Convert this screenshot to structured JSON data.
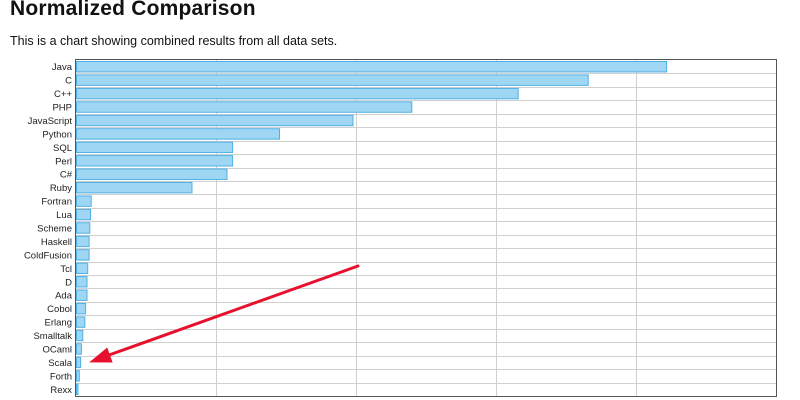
{
  "header": {
    "title": "Normalized Comparison",
    "description": "This is a chart showing combined results from all data sets."
  },
  "chart_data": {
    "type": "bar",
    "orientation": "horizontal",
    "title": "",
    "xlabel": "",
    "ylabel": "",
    "categories": [
      "Java",
      "C",
      "C++",
      "PHP",
      "JavaScript",
      "Python",
      "SQL",
      "Perl",
      "C#",
      "Ruby",
      "Fortran",
      "Lua",
      "Scheme",
      "Haskell",
      "ColdFusion",
      "Tcl",
      "D",
      "Ada",
      "Cobol",
      "Erlang",
      "Smalltalk",
      "OCaml",
      "Scala",
      "Forth",
      "Rexx"
    ],
    "values": [
      84.3,
      73.1,
      63.1,
      47.9,
      39.5,
      29.0,
      22.3,
      22.3,
      21.5,
      16.5,
      2.1,
      2.0,
      1.9,
      1.8,
      1.8,
      1.6,
      1.5,
      1.5,
      1.3,
      1.2,
      0.9,
      0.7,
      0.6,
      0.4,
      0.1
    ],
    "xlim": [
      0,
      100
    ],
    "grid": true,
    "gridline_values": [
      20,
      40,
      60,
      80,
      100
    ],
    "bar_fill": "#9fd6f3",
    "bar_stroke": "#4fb0e4",
    "annotations": [
      {
        "type": "arrow",
        "target": "Scala",
        "color": "#e8112d"
      }
    ]
  }
}
